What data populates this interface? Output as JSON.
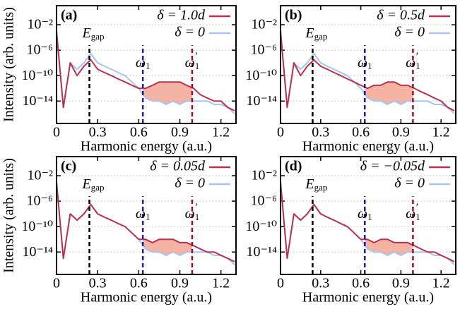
{
  "chart_data": [
    {
      "type": "line",
      "panel_label": "(a)",
      "xlabel": "Harmonic energy (a.u.)",
      "ylabel": "Intensity (arb. units)",
      "log_y": true,
      "grid": true,
      "legend": "upper right",
      "shade_color": "#f2a08c",
      "xlim": [
        0,
        1.31
      ],
      "xticks": [
        0,
        0.3,
        0.6,
        0.9,
        1.2
      ],
      "ylim": [
        3e-18,
        10
      ],
      "yticks": [
        {
          "value": 0.01,
          "label": "10⁻²"
        },
        {
          "value": 1e-06,
          "label": "10⁻⁶"
        },
        {
          "value": 1e-10,
          "label": "10⁻¹⁰"
        },
        {
          "value": 1e-14,
          "label": "10⁻¹⁴"
        }
      ],
      "annotations": [
        {
          "x": 0.24,
          "label": "E",
          "sub": "gap",
          "color": "#000000"
        },
        {
          "x": 0.63,
          "label": "ω",
          "sub": "1",
          "color": "#1a1aa0"
        },
        {
          "x": 0.99,
          "label": "ω",
          "sub": "1",
          "sup": "′",
          "color": "#9a1020"
        }
      ],
      "x": [
        0,
        0.05,
        0.1,
        0.15,
        0.2,
        0.25,
        0.3,
        0.35,
        0.4,
        0.45,
        0.5,
        0.55,
        0.6,
        0.65,
        0.7,
        0.75,
        0.8,
        0.85,
        0.9,
        0.95,
        1.0,
        1.05,
        1.1,
        1.15,
        1.2,
        1.25,
        1.3
      ],
      "series": [
        {
          "name": "δ = 1.0d",
          "color": "#b8324f",
          "values": [
            0.001,
            1e-15,
            1e-08,
            1e-10,
            3e-09,
            3e-08,
            1e-09,
            3e-10,
            1e-10,
            3e-11,
            1e-11,
            3e-12,
            1e-12,
            1e-12,
            3e-12,
            1e-11,
            1e-11,
            1e-11,
            1e-11,
            3e-12,
            1e-12,
            1e-13,
            3e-14,
            1e-14,
            1e-14,
            1e-15,
            3e-16
          ]
        },
        {
          "name": "δ = 0",
          "color": "#a8c4f0",
          "values": [
            0.001,
            1e-15,
            1e-08,
            1e-09,
            1e-08,
            3e-07,
            1e-08,
            3e-09,
            1e-09,
            3e-10,
            1e-10,
            1e-11,
            1e-12,
            3e-14,
            1e-14,
            1e-14,
            3e-15,
            1e-14,
            3e-15,
            1e-14,
            1e-14,
            1e-14,
            1e-14,
            3e-15,
            3e-15,
            1e-15,
            1e-16
          ]
        }
      ]
    },
    {
      "type": "line",
      "panel_label": "(b)",
      "xlabel": "Harmonic energy (a.u.)",
      "log_y": true,
      "grid": true,
      "legend": "upper right",
      "shade_color": "#f2a08c",
      "xlim": [
        0,
        1.31
      ],
      "xticks": [
        0,
        0.3,
        0.6,
        0.9,
        1.2
      ],
      "ylim": [
        3e-18,
        10
      ],
      "yticks": [
        {
          "value": 0.01,
          "label": "10⁻²"
        },
        {
          "value": 1e-06,
          "label": "10⁻⁶"
        },
        {
          "value": 1e-10,
          "label": "10⁻¹⁰"
        },
        {
          "value": 1e-14,
          "label": "10⁻¹⁴"
        }
      ],
      "annotations": [
        {
          "x": 0.24,
          "label": "E",
          "sub": "gap",
          "color": "#000000"
        },
        {
          "x": 0.63,
          "label": "ω",
          "sub": "1",
          "color": "#1a1aa0"
        },
        {
          "x": 0.99,
          "label": "ω",
          "sub": "1",
          "sup": "′",
          "color": "#9a1020"
        }
      ],
      "x": [
        0,
        0.05,
        0.1,
        0.15,
        0.2,
        0.25,
        0.3,
        0.35,
        0.4,
        0.45,
        0.5,
        0.55,
        0.6,
        0.65,
        0.7,
        0.75,
        0.8,
        0.85,
        0.9,
        0.95,
        1.0,
        1.05,
        1.1,
        1.15,
        1.2,
        1.25,
        1.3
      ],
      "series": [
        {
          "name": "δ = 0.5d",
          "color": "#b8324f",
          "values": [
            0.001,
            1e-15,
            1e-08,
            1e-10,
            3e-09,
            3e-08,
            3e-09,
            1e-09,
            3e-10,
            1e-10,
            3e-11,
            1e-11,
            3e-12,
            1e-12,
            3e-12,
            3e-12,
            1e-11,
            1e-11,
            3e-12,
            3e-12,
            1e-12,
            3e-13,
            1e-13,
            3e-14,
            1e-14,
            1e-15,
            3e-16
          ]
        },
        {
          "name": "δ = 0",
          "color": "#a8c4f0",
          "values": [
            0.001,
            1e-15,
            1e-08,
            1e-09,
            1e-08,
            3e-07,
            1e-08,
            3e-09,
            1e-09,
            3e-10,
            1e-10,
            1e-11,
            1e-12,
            3e-14,
            1e-14,
            1e-14,
            3e-15,
            1e-14,
            3e-15,
            1e-14,
            1e-14,
            1e-14,
            1e-14,
            3e-15,
            3e-15,
            1e-15,
            1e-16
          ]
        }
      ]
    },
    {
      "type": "line",
      "panel_label": "(c)",
      "xlabel": "Harmonic energy (a.u.)",
      "ylabel": "Intensity (arb. units)",
      "log_y": true,
      "grid": true,
      "legend": "upper right",
      "shade_color": "#f2a08c",
      "xlim": [
        0,
        1.31
      ],
      "xticks": [
        0,
        0.3,
        0.6,
        0.9,
        1.2
      ],
      "ylim": [
        3e-18,
        10
      ],
      "yticks": [
        {
          "value": 0.01,
          "label": "10⁻²"
        },
        {
          "value": 1e-06,
          "label": "10⁻⁶"
        },
        {
          "value": 1e-10,
          "label": "10⁻¹⁰"
        },
        {
          "value": 1e-14,
          "label": "10⁻¹⁴"
        }
      ],
      "annotations": [
        {
          "x": 0.24,
          "label": "E",
          "sub": "gap",
          "color": "#000000"
        },
        {
          "x": 0.63,
          "label": "ω",
          "sub": "1",
          "color": "#1a1aa0"
        },
        {
          "x": 0.99,
          "label": "ω",
          "sub": "1",
          "sup": "′",
          "color": "#9a1020"
        }
      ],
      "x": [
        0,
        0.05,
        0.1,
        0.15,
        0.2,
        0.25,
        0.3,
        0.35,
        0.4,
        0.45,
        0.5,
        0.55,
        0.6,
        0.65,
        0.7,
        0.75,
        0.8,
        0.85,
        0.9,
        0.95,
        1.0,
        1.05,
        1.1,
        1.15,
        1.2,
        1.25,
        1.3
      ],
      "series": [
        {
          "name": "δ = 0.05d",
          "color": "#b8324f",
          "values": [
            0.001,
            1e-15,
            1e-08,
            1e-09,
            1e-08,
            3e-07,
            1e-08,
            3e-09,
            1e-09,
            3e-10,
            1e-10,
            1e-11,
            1e-12,
            1e-12,
            3e-13,
            1e-12,
            1e-12,
            1e-12,
            3e-13,
            3e-13,
            1e-13,
            3e-14,
            1e-14,
            1e-14,
            3e-15,
            1e-15,
            3e-16
          ]
        },
        {
          "name": "δ = 0",
          "color": "#a8c4f0",
          "values": [
            0.001,
            1e-15,
            1e-08,
            1e-09,
            1e-08,
            3e-07,
            1e-08,
            3e-09,
            1e-09,
            3e-10,
            1e-10,
            1e-11,
            1e-12,
            3e-14,
            1e-14,
            1e-14,
            3e-15,
            1e-14,
            3e-15,
            1e-14,
            1e-14,
            1e-14,
            1e-14,
            3e-15,
            3e-15,
            1e-15,
            1e-16
          ]
        }
      ]
    },
    {
      "type": "line",
      "panel_label": "(d)",
      "xlabel": "Harmonic energy (a.u.)",
      "log_y": true,
      "grid": true,
      "legend": "upper right",
      "shade_color": "#f2a08c",
      "xlim": [
        0,
        1.31
      ],
      "xticks": [
        0,
        0.3,
        0.6,
        0.9,
        1.2
      ],
      "ylim": [
        3e-18,
        10
      ],
      "yticks": [
        {
          "value": 0.01,
          "label": "10⁻²"
        },
        {
          "value": 1e-06,
          "label": "10⁻⁶"
        },
        {
          "value": 1e-10,
          "label": "10⁻¹⁰"
        },
        {
          "value": 1e-14,
          "label": "10⁻¹⁴"
        }
      ],
      "annotations": [
        {
          "x": 0.24,
          "label": "E",
          "sub": "gap",
          "color": "#000000"
        },
        {
          "x": 0.63,
          "label": "ω",
          "sub": "1",
          "color": "#1a1aa0"
        },
        {
          "x": 0.99,
          "label": "ω",
          "sub": "1",
          "sup": "′",
          "color": "#9a1020"
        }
      ],
      "x": [
        0,
        0.05,
        0.1,
        0.15,
        0.2,
        0.25,
        0.3,
        0.35,
        0.4,
        0.45,
        0.5,
        0.55,
        0.6,
        0.65,
        0.7,
        0.75,
        0.8,
        0.85,
        0.9,
        0.95,
        1.0,
        1.05,
        1.1,
        1.15,
        1.2,
        1.25,
        1.3
      ],
      "series": [
        {
          "name": "δ = −0.05d",
          "color": "#b8324f",
          "values": [
            0.001,
            1e-15,
            1e-08,
            1e-09,
            1e-08,
            3e-07,
            1e-08,
            3e-09,
            1e-09,
            3e-10,
            1e-10,
            1e-11,
            1e-12,
            1e-12,
            3e-13,
            1e-12,
            1e-12,
            3e-13,
            3e-13,
            3e-13,
            1e-13,
            3e-14,
            1e-14,
            1e-14,
            3e-15,
            1e-15,
            3e-16
          ]
        },
        {
          "name": "δ = 0",
          "color": "#a8c4f0",
          "values": [
            0.001,
            1e-15,
            1e-08,
            1e-09,
            1e-08,
            3e-07,
            1e-08,
            3e-09,
            1e-09,
            3e-10,
            1e-10,
            1e-11,
            1e-12,
            3e-14,
            1e-14,
            1e-14,
            3e-15,
            1e-14,
            3e-15,
            1e-14,
            1e-14,
            1e-14,
            1e-14,
            3e-15,
            3e-15,
            1e-15,
            1e-16
          ]
        }
      ]
    }
  ]
}
